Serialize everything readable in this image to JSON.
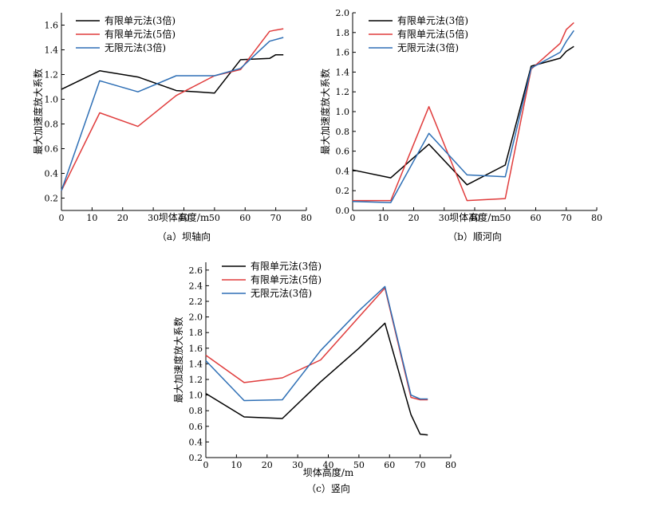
{
  "chart_data": [
    {
      "type": "line",
      "caption": "（a）坝轴向",
      "xlabel": "坝体高度/m",
      "ylabel": "最大加速度放大系数",
      "xlim": [
        0,
        80
      ],
      "ylim": [
        0.1,
        1.7
      ],
      "xticks": [
        0,
        10,
        20,
        30,
        40,
        50,
        60,
        70,
        80
      ],
      "yticks": [
        0.2,
        0.4,
        0.6,
        0.8,
        1.0,
        1.2,
        1.4,
        1.6
      ],
      "ytick_labels": [
        "0.2",
        "0.4",
        "0.6",
        "0.8",
        "1.0",
        "1.2",
        "1.4",
        "1.6"
      ],
      "legend_position": "top-left",
      "series": [
        {
          "name": "有限单元法(3倍)",
          "color": "#000000",
          "x": [
            0,
            12.5,
            25,
            37.5,
            50,
            58.5,
            68,
            70,
            72.5
          ],
          "y": [
            1.08,
            1.23,
            1.18,
            1.07,
            1.05,
            1.32,
            1.33,
            1.36,
            1.36
          ]
        },
        {
          "name": "有限单元法(5倍)",
          "color": "#e03c3c",
          "x": [
            0,
            12.5,
            25,
            37.5,
            50,
            58.5,
            68,
            70,
            72.5
          ],
          "y": [
            0.26,
            0.89,
            0.78,
            1.03,
            1.19,
            1.24,
            1.55,
            1.56,
            1.57
          ]
        },
        {
          "name": "无限元法(3倍)",
          "color": "#2e6fb5",
          "x": [
            0,
            12.5,
            25,
            37.5,
            50,
            58.5,
            68,
            72.5
          ],
          "y": [
            0.26,
            1.15,
            1.06,
            1.19,
            1.19,
            1.25,
            1.47,
            1.5
          ]
        }
      ]
    },
    {
      "type": "line",
      "caption": "（b）顺河向",
      "xlabel": "坝体高度/m",
      "ylabel": "最大加速度放大系数",
      "xlim": [
        0,
        80
      ],
      "ylim": [
        0,
        2.0
      ],
      "xticks": [
        0,
        10,
        20,
        30,
        40,
        50,
        60,
        70,
        80
      ],
      "yticks": [
        0,
        0.2,
        0.4,
        0.6,
        0.8,
        1.0,
        1.2,
        1.4,
        1.6,
        1.8,
        2.0
      ],
      "ytick_labels": [
        "0.0",
        "0.2",
        "0.4",
        "0.6",
        "0.8",
        "1.0",
        "1.2",
        "1.4",
        "1.6",
        "1.8",
        "2.0"
      ],
      "legend_position": "top-left",
      "series": [
        {
          "name": "有限单元法(3倍)",
          "color": "#000000",
          "x": [
            0,
            12.5,
            25,
            37.5,
            50,
            58.5,
            68,
            70,
            72.5
          ],
          "y": [
            0.41,
            0.33,
            0.67,
            0.26,
            0.46,
            1.46,
            1.54,
            1.61,
            1.66
          ]
        },
        {
          "name": "有限单元法(5倍)",
          "color": "#e03c3c",
          "x": [
            0,
            12.5,
            25,
            37.5,
            50,
            58.5,
            68,
            70,
            72.5
          ],
          "y": [
            0.1,
            0.1,
            1.05,
            0.1,
            0.12,
            1.43,
            1.69,
            1.83,
            1.9
          ]
        },
        {
          "name": "无限元法(3倍)",
          "color": "#2e6fb5",
          "x": [
            0,
            12.5,
            25,
            37.5,
            50,
            58.5,
            68,
            70,
            72.5
          ],
          "y": [
            0.09,
            0.08,
            0.78,
            0.36,
            0.34,
            1.44,
            1.6,
            1.71,
            1.82
          ]
        }
      ]
    },
    {
      "type": "line",
      "caption": "（c）竖向",
      "xlabel": "坝体高度/m",
      "ylabel": "最大加速度放大系数",
      "xlim": [
        0,
        80
      ],
      "ylim": [
        0.2,
        2.7
      ],
      "xticks": [
        0,
        10,
        20,
        30,
        40,
        50,
        60,
        70,
        80
      ],
      "yticks": [
        0.2,
        0.4,
        0.6,
        0.8,
        1.0,
        1.2,
        1.4,
        1.6,
        1.8,
        2.0,
        2.2,
        2.4,
        2.6
      ],
      "ytick_labels": [
        "0.2",
        "0.4",
        "0.6",
        "0.8",
        "1.0",
        "1.2",
        "1.4",
        "1.6",
        "1.8",
        "2.0",
        "2.2",
        "2.4",
        "2.6"
      ],
      "legend_position": "top-left",
      "series": [
        {
          "name": "有限单元法(3倍)",
          "color": "#000000",
          "x": [
            0,
            12.5,
            25,
            37.5,
            50,
            58.5,
            67,
            70,
            72.5
          ],
          "y": [
            1.02,
            0.72,
            0.7,
            1.17,
            1.6,
            1.92,
            0.75,
            0.5,
            0.49
          ]
        },
        {
          "name": "有限单元法(5倍)",
          "color": "#e03c3c",
          "x": [
            0,
            12.5,
            25,
            37.5,
            50,
            58.5,
            67,
            70,
            72.5
          ],
          "y": [
            1.51,
            1.16,
            1.22,
            1.45,
            2.0,
            2.37,
            0.97,
            0.94,
            0.94
          ]
        },
        {
          "name": "无限元法(3倍)",
          "color": "#2e6fb5",
          "x": [
            0,
            12.5,
            25,
            37.5,
            50,
            58.5,
            67,
            70,
            72.5
          ],
          "y": [
            1.44,
            0.93,
            0.94,
            1.57,
            2.08,
            2.39,
            1.0,
            0.95,
            0.95
          ]
        }
      ]
    }
  ]
}
